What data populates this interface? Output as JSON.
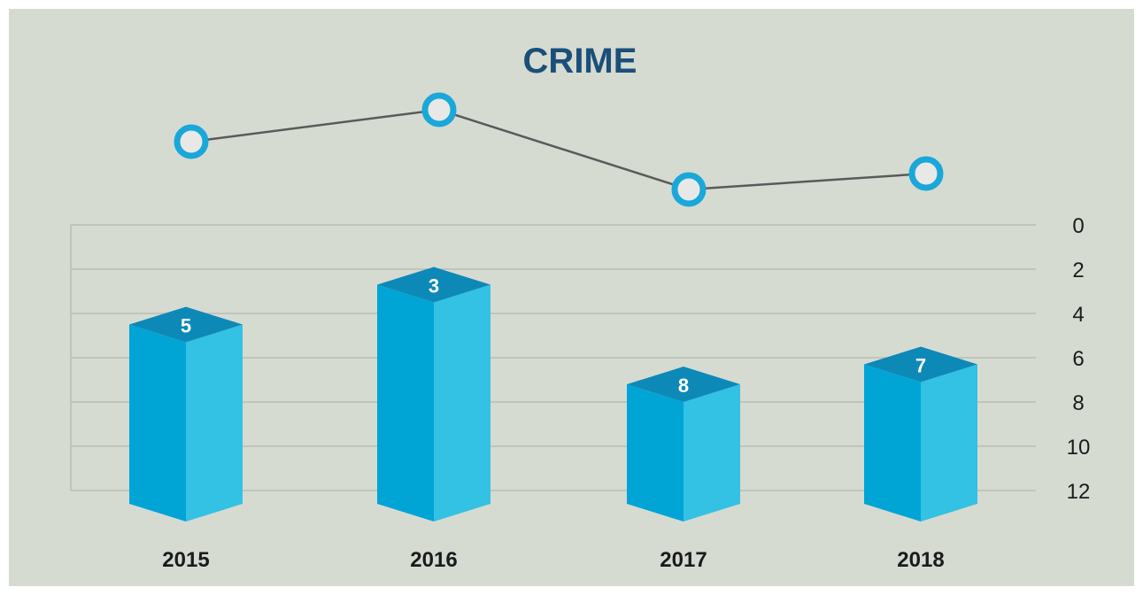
{
  "chart_data": {
    "type": "bar",
    "title": "CRIME",
    "categories": [
      "2015",
      "2016",
      "2017",
      "2018"
    ],
    "values": [
      5,
      3,
      8,
      7
    ],
    "y_axis": {
      "ticks": [
        "0",
        "2",
        "4",
        "6",
        "8",
        "10",
        "12"
      ],
      "range": [
        0,
        12
      ],
      "position": "right",
      "inverted": true
    },
    "xlabel": "",
    "ylabel": "",
    "grid": true,
    "legend": "none"
  },
  "colors": {
    "background": "#d6dbd2",
    "title": "#1a4f7a",
    "bar_front": "#00a5d6",
    "bar_side": "#33c1e4",
    "bar_top": "#0d89b8",
    "grid": "#b8bdb6",
    "line": "#5a5a5a",
    "marker_ring": "#1aa7d9",
    "marker_fill": "#e8e9e6",
    "text": "#1b1b1b"
  }
}
